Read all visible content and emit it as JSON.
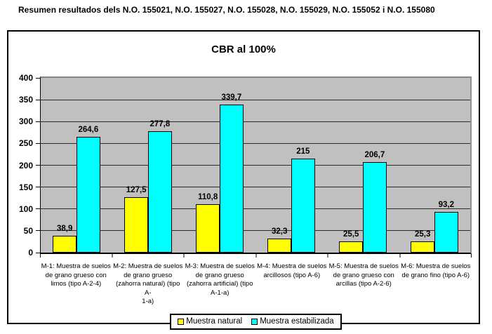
{
  "header": {
    "title": "Resumen resultados dels N.O. 155021, N.O. 155027, N.O. 155028, N.O. 155029, N.O. 155052 i N.O. 155080"
  },
  "chart_data": {
    "type": "bar",
    "title": "CBR al 100%",
    "ylim": [
      0,
      400
    ],
    "ytick_step": 50,
    "grid": true,
    "legend_position": "bottom",
    "plot_background": "#C0C0C0",
    "categories": [
      "M-1: Muestra de suelos de grano grueso con limos (tipo A-2-4)",
      "M-2: Muestra de suelos de grano grueso (zahorra natural) (tipo A-1-a)",
      "M-3: Muestra de suelos de grano grueso (zahorra artificial) (tipo A-1-a)",
      "M-4: Muestra de suelos arcillosos (tipo A-6)",
      "M-5: Muestra de suelos de grano grueso con arcillas (tipo A-2-6)",
      "M-6: Muestra de suelos de grano fino (tipo A-6)"
    ],
    "category_lines": [
      [
        "M-1: Muestra de suelos",
        "de grano grueso con",
        "limos (tipo A-2-4)"
      ],
      [
        "M-2: Muestra de suelos",
        "de grano grueso",
        "(zahorra natural) (tipo A-",
        "1-a)"
      ],
      [
        "M-3: Muestra de suelos",
        "de grano grueso",
        "(zahorra artificial) (tipo",
        "A-1-a)"
      ],
      [
        "M-4: Muestra de suelos",
        "arcillosos (tipo A-6)"
      ],
      [
        "M-5: Muestra de suelos",
        "de grano grueso con",
        "arcillas (tipo A-2-6)"
      ],
      [
        "M-6: Muestra de suelos",
        "de grano fino (tipo A-6)"
      ]
    ],
    "series": [
      {
        "name": "Muestra natural",
        "color": "#FFFF00",
        "values": [
          38.9,
          127.5,
          110.8,
          32.3,
          25.5,
          25.3
        ],
        "value_labels": [
          "38,9",
          "127,5",
          "110,8",
          "32,3",
          "25,5",
          "25,3"
        ]
      },
      {
        "name": "Muestra estabilizada",
        "color": "#00FFFF",
        "values": [
          264.6,
          277.8,
          339.7,
          215,
          206.7,
          93.2
        ],
        "value_labels": [
          "264,6",
          "277,8",
          "339,7",
          "215",
          "206,7",
          "93,2"
        ]
      }
    ]
  }
}
